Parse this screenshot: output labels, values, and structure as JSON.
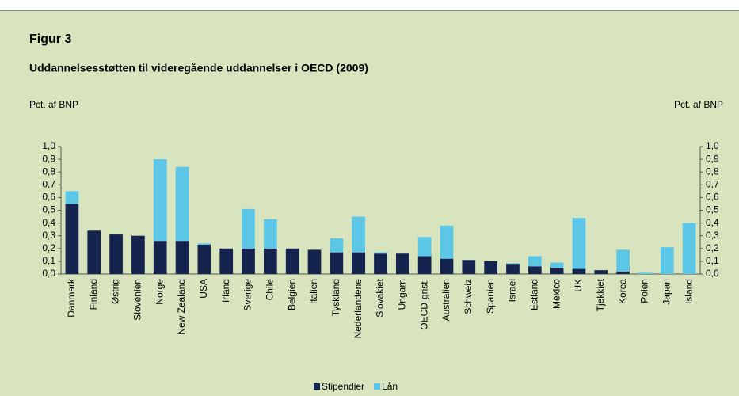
{
  "chart_data": {
    "type": "stacked_bar",
    "figure_label": "Figur 3",
    "title": "Uddannelsesstøtten til videregående uddannelser i OECD (2009)",
    "y_label": "Pct. af BNP",
    "y2_label": "Pct. af BNP",
    "categories": [
      "Danmark",
      "Finland",
      "Østrig",
      "Slovenien",
      "Norge",
      "New Zealand",
      "USA",
      "Irland",
      "Sverige",
      "Chile",
      "Belgien",
      "Italien",
      "Tyskland",
      "Nederlandene",
      "Slovakiet",
      "Ungarn",
      "OECD-gnst.",
      "Australien",
      "Schweiz",
      "Spanien",
      "Israel",
      "Estland",
      "Mexico",
      "UK",
      "Tjekkiet",
      "Korea",
      "Polen",
      "Japan",
      "Island"
    ],
    "series": [
      {
        "name": "Stipendier",
        "color": "#14244f",
        "values": [
          0.55,
          0.34,
          0.31,
          0.3,
          0.26,
          0.26,
          0.23,
          0.2,
          0.2,
          0.2,
          0.2,
          0.19,
          0.17,
          0.17,
          0.16,
          0.16,
          0.14,
          0.12,
          0.11,
          0.1,
          0.08,
          0.06,
          0.05,
          0.04,
          0.03,
          0.02,
          0,
          0,
          0
        ]
      },
      {
        "name": "Lån",
        "color": "#5cc6e6",
        "values": [
          0.1,
          0,
          0,
          0,
          0.64,
          0.58,
          0.01,
          0,
          0.31,
          0.23,
          0,
          0,
          0.11,
          0.28,
          0.01,
          0,
          0.15,
          0.26,
          0,
          0,
          0.005,
          0.08,
          0.04,
          0.4,
          0,
          0.17,
          0.01,
          0.21,
          0.4
        ]
      }
    ],
    "ylim": [
      0,
      1.0
    ],
    "yticks": [
      {
        "value": 0,
        "label": "0,0"
      },
      {
        "value": 0.1,
        "label": "0,1"
      },
      {
        "value": 0.2,
        "label": "0,2"
      },
      {
        "value": 0.3,
        "label": "0,3"
      },
      {
        "value": 0.4,
        "label": "0,4"
      },
      {
        "value": 0.5,
        "label": "0,5"
      },
      {
        "value": 0.6,
        "label": "0,6"
      },
      {
        "value": 0.7,
        "label": "0,7"
      },
      {
        "value": 0.8,
        "label": "0,8"
      },
      {
        "value": 0.9,
        "label": "0,9"
      },
      {
        "value": 1.0,
        "label": "1,0"
      }
    ],
    "y2lim": [
      0,
      1.0
    ],
    "y2ticks": [
      {
        "value": 0,
        "label": "0,0"
      },
      {
        "value": 0.1,
        "label": "0,1"
      },
      {
        "value": 0.2,
        "label": "0,2"
      },
      {
        "value": 0.3,
        "label": "0,3"
      },
      {
        "value": 0.4,
        "label": "0,4"
      },
      {
        "value": 0.5,
        "label": "0,5"
      },
      {
        "value": 0.6,
        "label": "0,6"
      },
      {
        "value": 0.7,
        "label": "0,7"
      },
      {
        "value": 0.8,
        "label": "0,8"
      },
      {
        "value": 0.9,
        "label": "0,9"
      },
      {
        "value": 1.0,
        "label": "1,0"
      }
    ],
    "legend": "bottom"
  }
}
